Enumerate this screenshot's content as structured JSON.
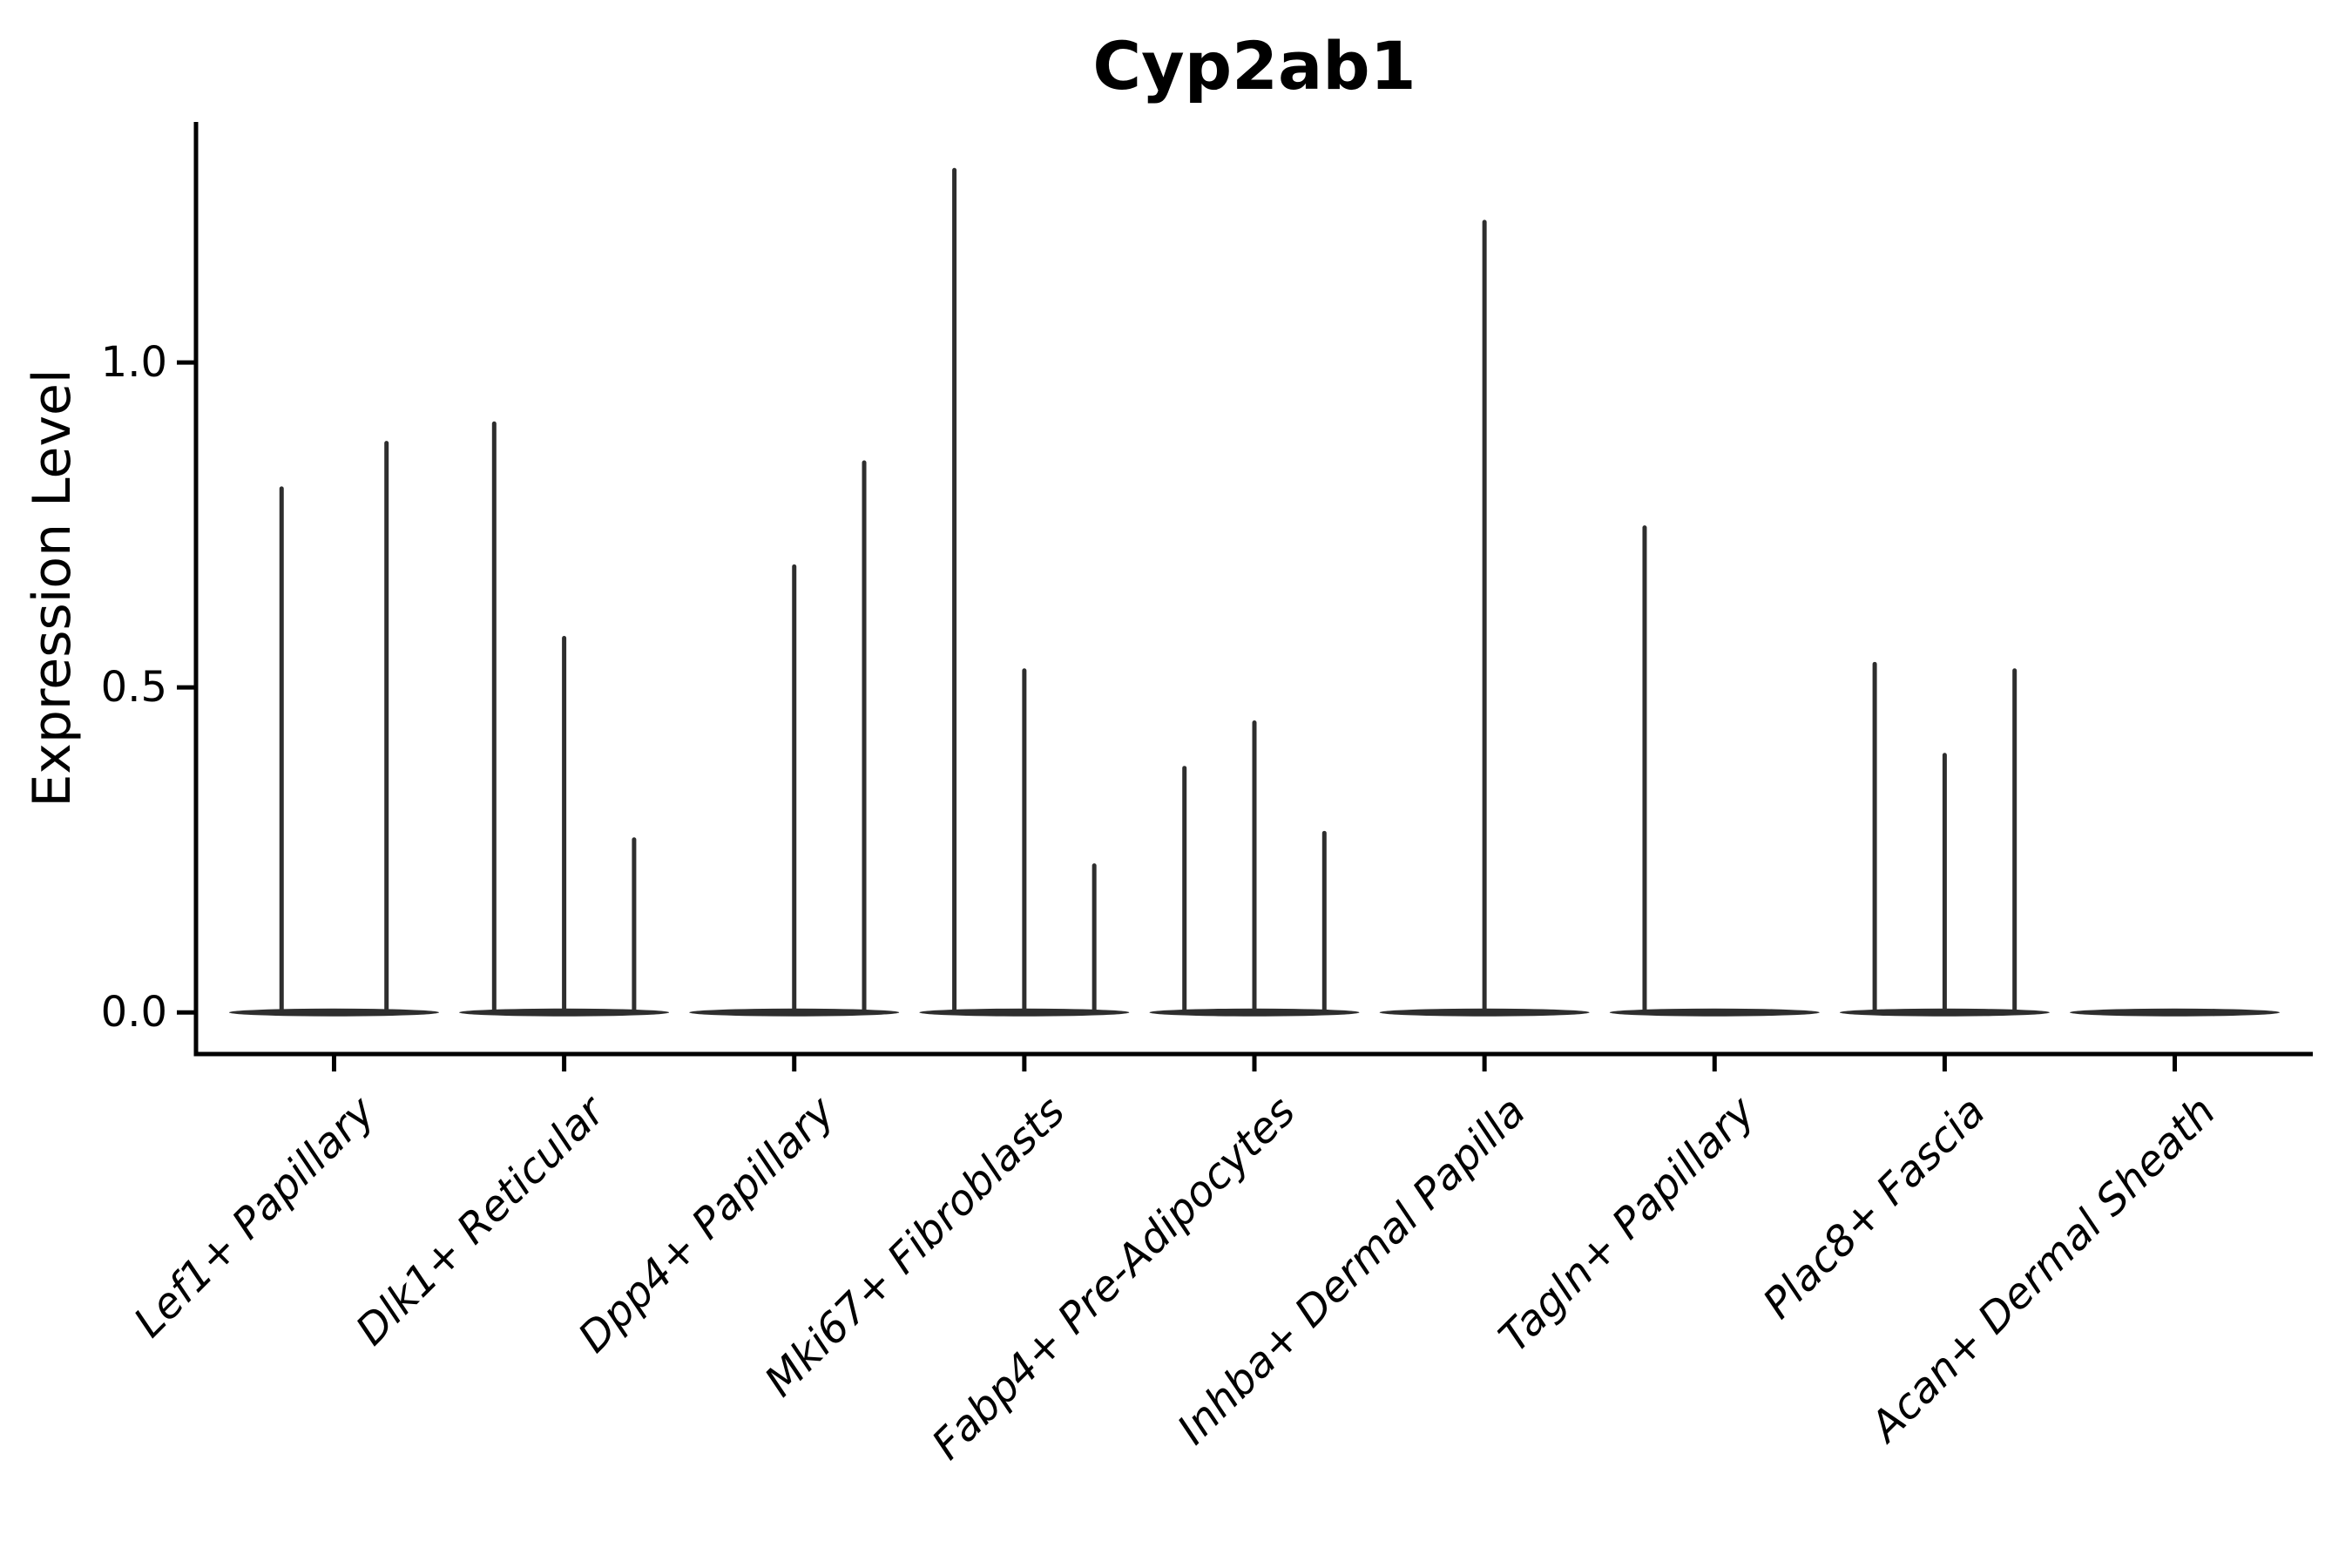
{
  "chart_data": {
    "type": "violin",
    "title": "Cyp2ab1",
    "ylabel": "Expression Level",
    "xlabel": "",
    "yticks": [
      0.0,
      0.5,
      1.0
    ],
    "ylim": [
      -0.064,
      1.37
    ],
    "grid": false,
    "legend": "none",
    "categories": [
      "Lef1+ Papillary",
      "Dlk1+ Reticular",
      "Dpp4+ Papillary",
      "Mki67+ Fibroblasts",
      "Fabp4+ Pre-Adipocytes",
      "Inhba+ Dermal Papilla",
      "Tagln+ Papillary",
      "Plac8+ Fascia",
      "Acan+ Dermal Sheath"
    ],
    "groups": [
      {
        "category": "Lef1+ Papillary",
        "n_slots": 2,
        "spikes": [
          {
            "slot": 0,
            "peak": 0.81
          },
          {
            "slot": 1,
            "peak": 0.88
          }
        ]
      },
      {
        "category": "Dlk1+ Reticular",
        "n_slots": 3,
        "spikes": [
          {
            "slot": 0,
            "peak": 0.91
          },
          {
            "slot": 1,
            "peak": 0.58
          },
          {
            "slot": 2,
            "peak": 0.27
          }
        ]
      },
      {
        "category": "Dpp4+ Papillary",
        "n_slots": 3,
        "spikes": [
          {
            "slot": 1,
            "peak": 0.69
          },
          {
            "slot": 2,
            "peak": 0.85
          }
        ]
      },
      {
        "category": "Mki67+ Fibroblasts",
        "n_slots": 3,
        "spikes": [
          {
            "slot": 0,
            "peak": 1.3
          },
          {
            "slot": 1,
            "peak": 0.53
          },
          {
            "slot": 2,
            "peak": 0.23
          }
        ]
      },
      {
        "category": "Fabp4+ Pre-Adipocytes",
        "n_slots": 3,
        "spikes": [
          {
            "slot": 0,
            "peak": 0.38
          },
          {
            "slot": 1,
            "peak": 0.45
          },
          {
            "slot": 2,
            "peak": 0.28
          }
        ]
      },
      {
        "category": "Inhba+ Dermal Papilla",
        "n_slots": 1,
        "spikes": [
          {
            "slot": 0,
            "peak": 1.22
          }
        ]
      },
      {
        "category": "Tagln+ Papillary",
        "n_slots": 3,
        "spikes": [
          {
            "slot": 0,
            "peak": 0.75
          }
        ]
      },
      {
        "category": "Plac8+ Fascia",
        "n_slots": 3,
        "spikes": [
          {
            "slot": 0,
            "peak": 0.54
          },
          {
            "slot": 1,
            "peak": 0.4
          },
          {
            "slot": 2,
            "peak": 0.53
          }
        ]
      },
      {
        "category": "Acan+ Dermal Sheath",
        "n_slots": 3,
        "spikes": []
      }
    ],
    "style": {
      "ink": "#2e2e2e",
      "axis": "#000000",
      "violin_rel_width": 0.912
    }
  }
}
